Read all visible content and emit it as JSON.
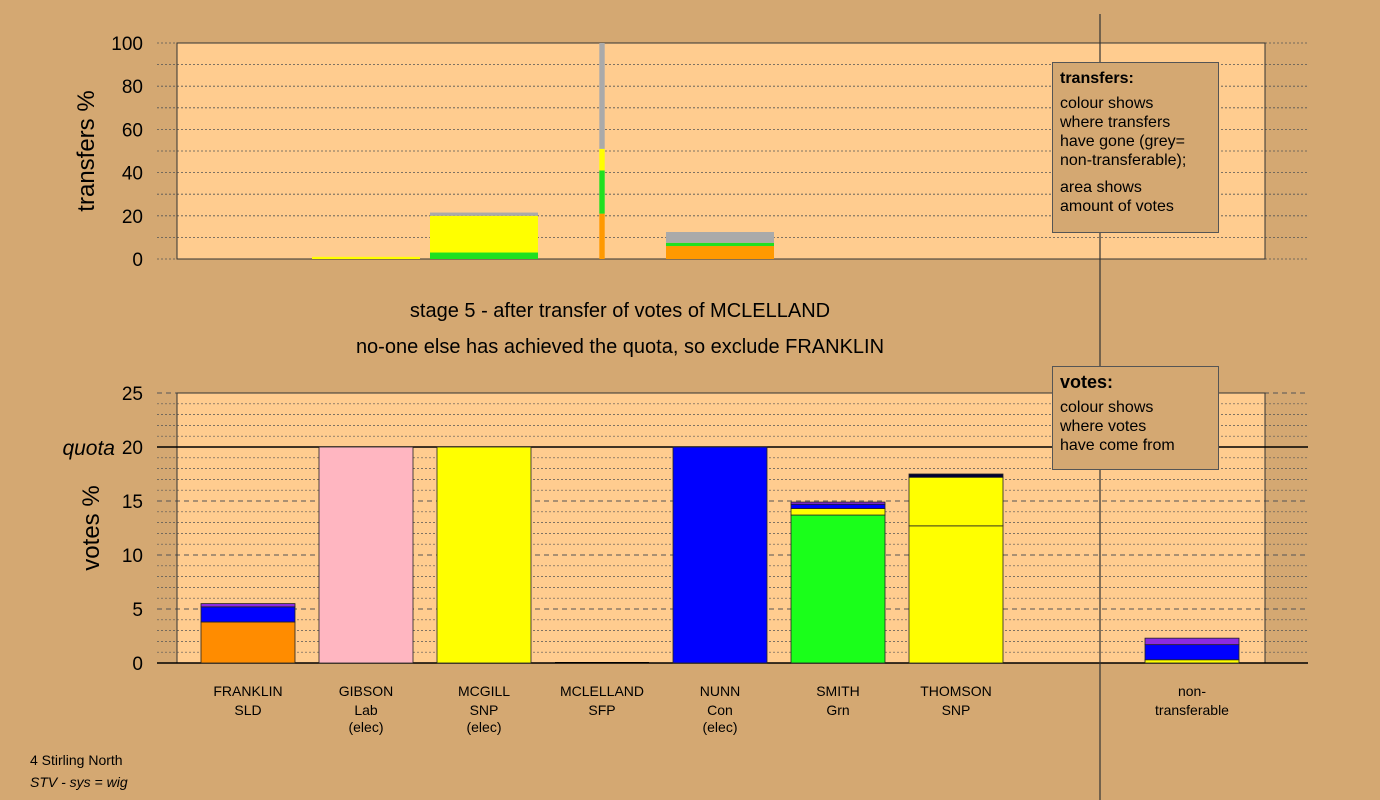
{
  "chart_data": [
    {
      "type": "bar",
      "stacked": true,
      "ylabel": "transfers %",
      "ylim": [
        0,
        100
      ],
      "yticks": [
        0,
        20,
        40,
        60,
        80,
        100
      ],
      "grid": true,
      "legend_placement": "top-right",
      "note": {
        "title": "transfers:",
        "lines": [
          "colour shows\nwhere transfers\nhave gone (grey=\nnon-transferable);",
          "area shows\namount of votes"
        ]
      },
      "bars": [
        {
          "candidate": "GIBSON",
          "width": 1.0,
          "segments": [
            {
              "value": 1.0,
              "color": "#ffff00"
            }
          ]
        },
        {
          "candidate": "MCGILL",
          "width": 1.0,
          "segments": [
            {
              "value": 3,
              "color": "#20e020"
            },
            {
              "value": 17,
              "color": "#ffff00"
            },
            {
              "value": 1.5,
              "color": "#aaaaaa"
            }
          ]
        },
        {
          "candidate": "MCLELLAND",
          "width": 0.05,
          "segments": [
            {
              "value": 21,
              "color": "#ff9900"
            },
            {
              "value": 20,
              "color": "#20e020"
            },
            {
              "value": 10,
              "color": "#ffff00"
            },
            {
              "value": 49,
              "color": "#aaaaaa"
            }
          ]
        },
        {
          "candidate": "NUNN",
          "width": 1.0,
          "segments": [
            {
              "value": 6,
              "color": "#ff9900"
            },
            {
              "value": 1.5,
              "color": "#20e020"
            },
            {
              "value": 5,
              "color": "#aaaaaa"
            }
          ]
        }
      ]
    },
    {
      "type": "bar",
      "stacked": true,
      "ylabel": "votes %",
      "ylim": [
        0,
        25
      ],
      "yticks": [
        0,
        5,
        10,
        15,
        20,
        25
      ],
      "quota": 20,
      "quota_label": "quota",
      "grid": true,
      "legend_placement": "top-right",
      "note": {
        "title": "votes:",
        "lines": [
          "colour shows\nwhere votes\nhave come from"
        ]
      },
      "bars": [
        {
          "name": "FRANKLIN",
          "party": "SLD",
          "status": "",
          "segments": [
            {
              "value": 3.8,
              "color": "#ff8c00"
            },
            {
              "value": 1.4,
              "color": "#0000ff"
            },
            {
              "value": 0.3,
              "color": "#8a2be2"
            }
          ]
        },
        {
          "name": "GIBSON",
          "party": "Lab",
          "status": "(elec)",
          "segments": [
            {
              "value": 20,
              "color": "#ffb6c1"
            }
          ]
        },
        {
          "name": "MCGILL",
          "party": "SNP",
          "status": "(elec)",
          "segments": [
            {
              "value": 20,
              "color": "#ffff00"
            }
          ]
        },
        {
          "name": "MCLELLAND",
          "party": "SFP",
          "status": "",
          "segments": []
        },
        {
          "name": "NUNN",
          "party": "Con",
          "status": "(elec)",
          "segments": [
            {
              "value": 20,
              "color": "#0000ff"
            }
          ]
        },
        {
          "name": "SMITH",
          "party": "Grn",
          "status": "",
          "segments": [
            {
              "value": 13.7,
              "color": "#1aff1a"
            },
            {
              "value": 0.6,
              "color": "#ffff00"
            },
            {
              "value": 0.4,
              "color": "#0000ff"
            },
            {
              "value": 0.2,
              "color": "#8a2be2"
            }
          ]
        },
        {
          "name": "THOMSON",
          "party": "SNP",
          "status": "",
          "segments": [
            {
              "value": 12.7,
              "color": "#ffff00"
            },
            {
              "value": 4.5,
              "color": "#ffff00"
            },
            {
              "value": 0.3,
              "color": "#000033"
            }
          ]
        },
        {
          "name": "",
          "party": "",
          "status": "",
          "spacer": true,
          "segments": []
        },
        {
          "name": "non-",
          "party": "transferable",
          "status": "",
          "segments": [
            {
              "value": 0.3,
              "color": "#ffff00"
            },
            {
              "value": 1.4,
              "color": "#0000ff"
            },
            {
              "value": 0.6,
              "color": "#8a2be2"
            }
          ]
        }
      ]
    }
  ],
  "stage_text": "stage 5 - after transfer of votes of MCLELLAND",
  "decision_text": "no-one else has achieved the quota, so exclude FRANKLIN",
  "footer": {
    "constituency": "4 Stirling North",
    "system": "STV - sys = wig"
  }
}
